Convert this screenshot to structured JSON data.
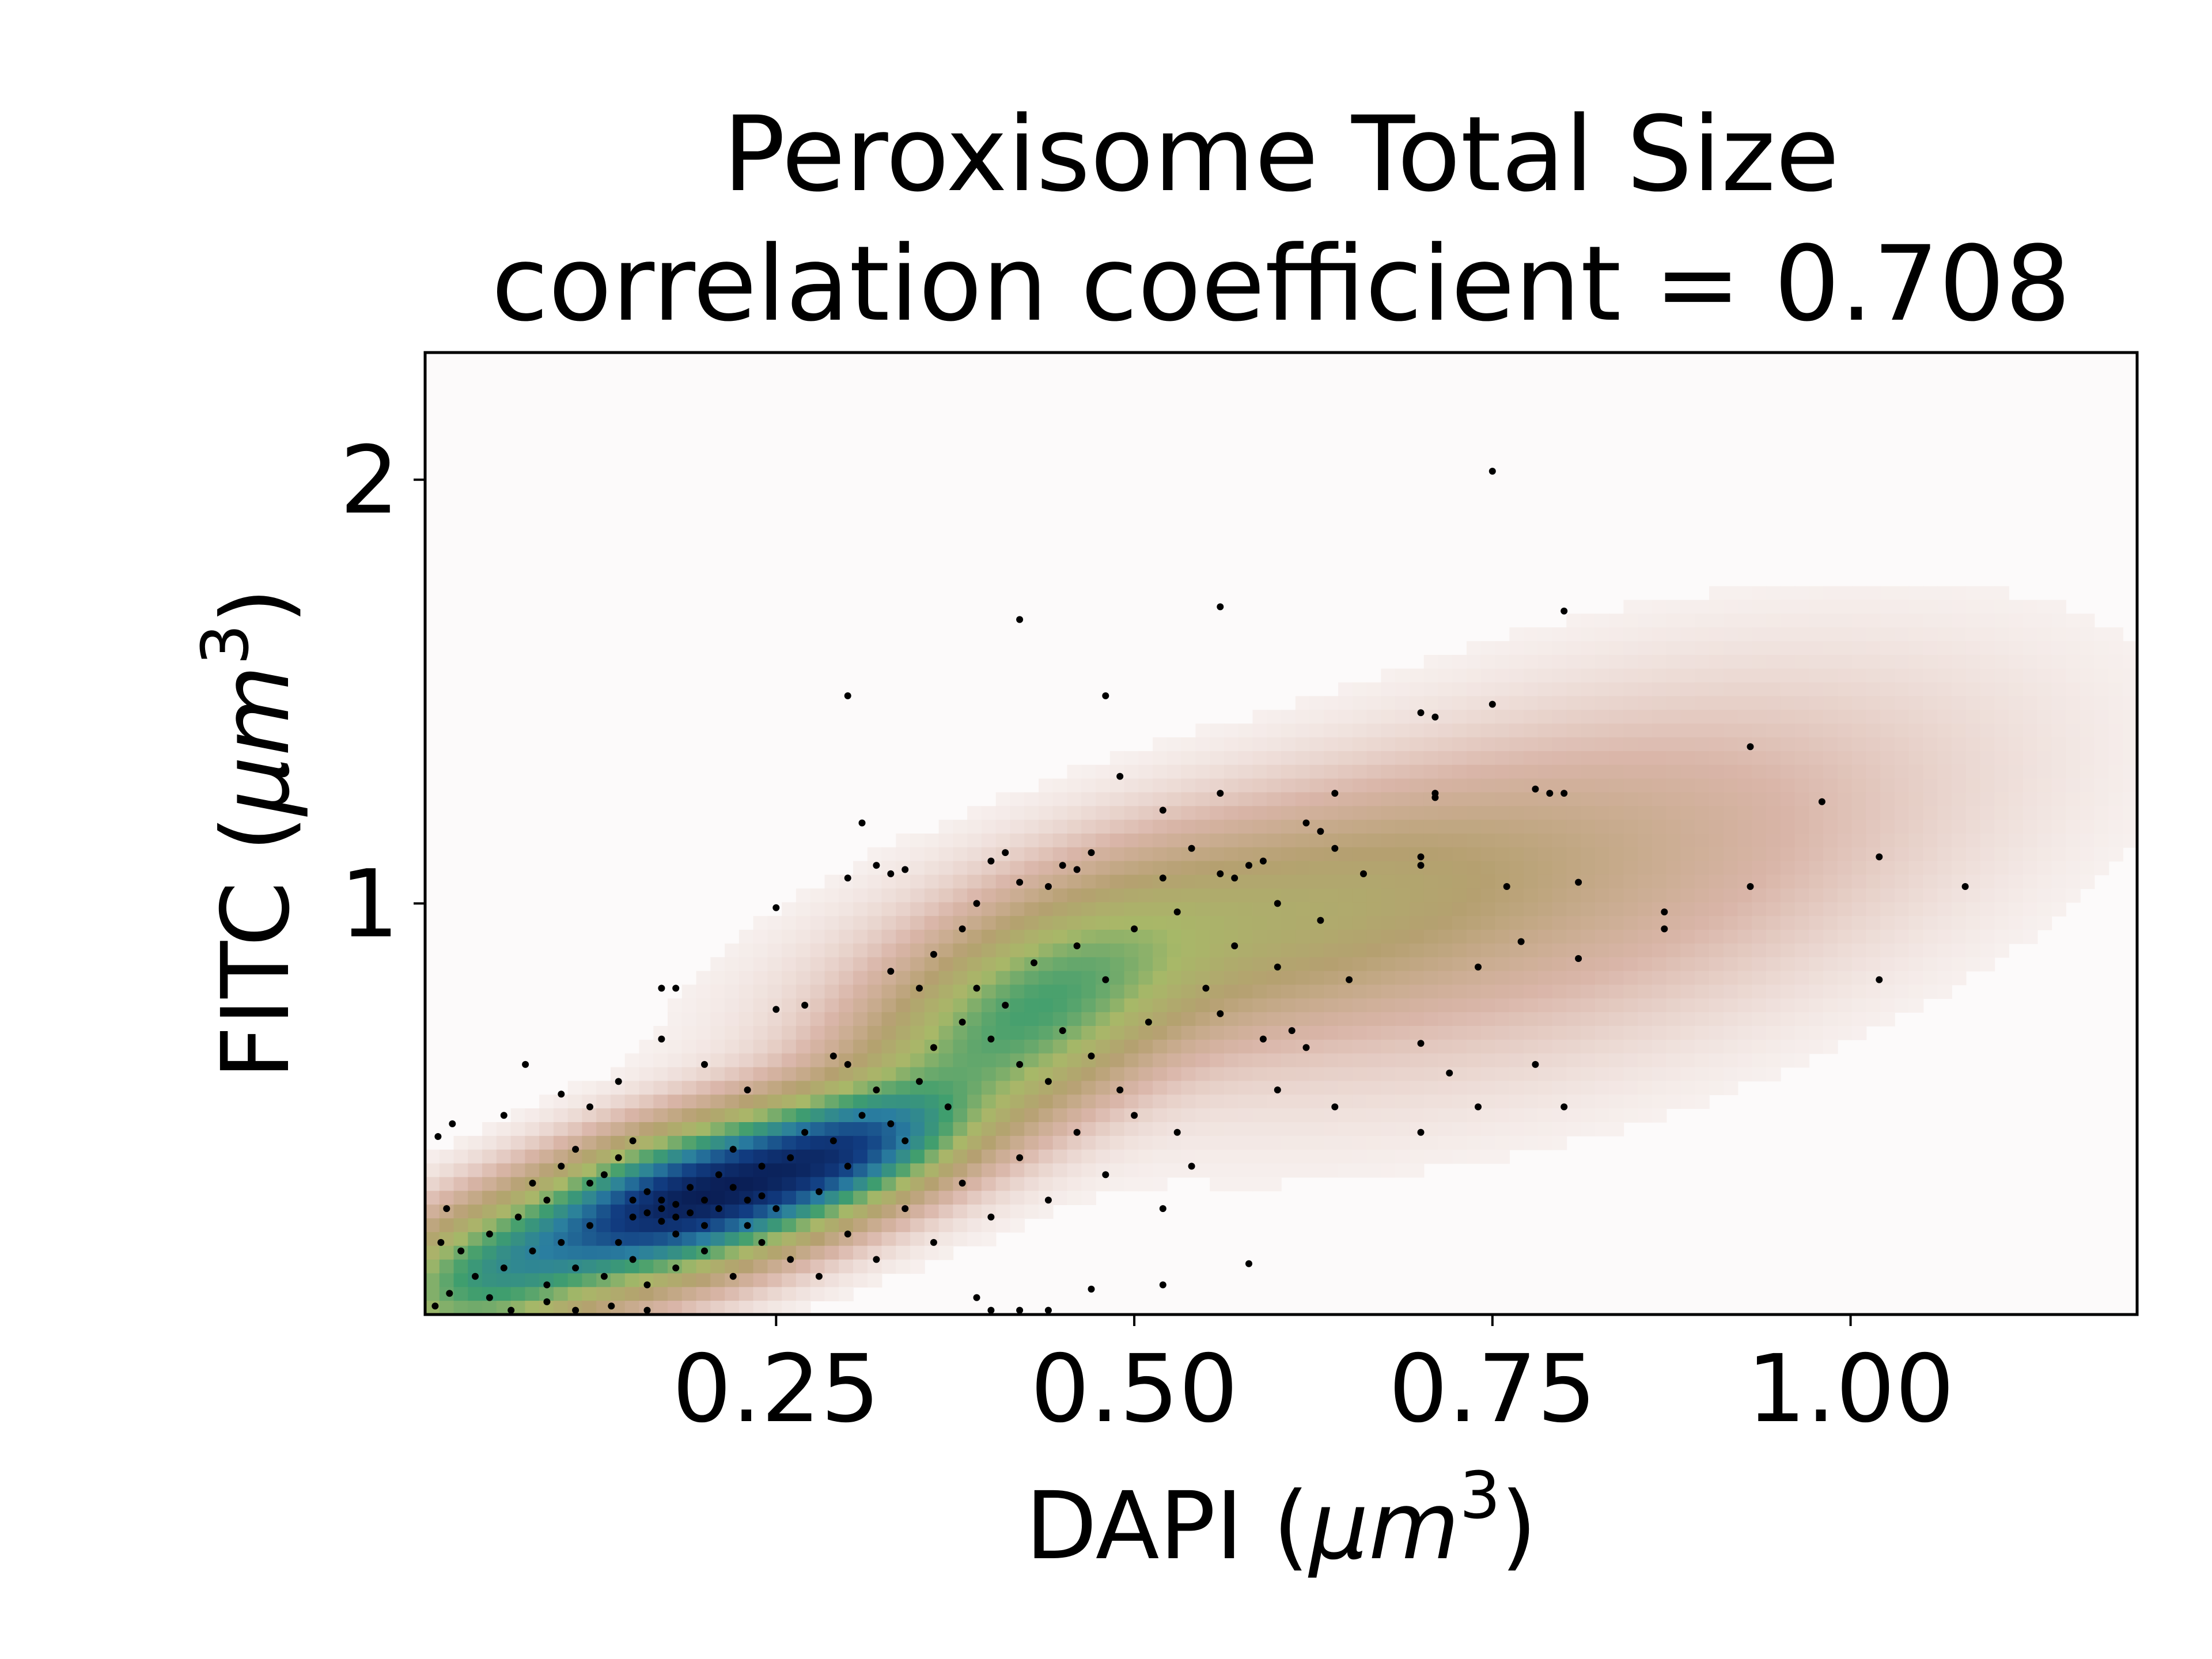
{
  "chart_data": {
    "type": "scatter",
    "title": "Peroxisome Total Size",
    "subtitle": "correlation coefficient = 0.708",
    "xlabel": {
      "prefix": "DAPI (",
      "var": "μm",
      "sup": "3",
      "suffix": ")"
    },
    "ylabel": {
      "prefix": "FITC (",
      "var": "μm",
      "sup": "3",
      "suffix": ")"
    },
    "xlim": [
      0.005,
      1.2
    ],
    "ylim": [
      0.03,
      2.3
    ],
    "xticks": [
      {
        "value": 0.25,
        "label": "0.25"
      },
      {
        "value": 0.5,
        "label": "0.50"
      },
      {
        "value": 0.75,
        "label": "0.75"
      },
      {
        "value": 1.0,
        "label": "1.00"
      }
    ],
    "yticks": [
      {
        "value": 1,
        "label": "1"
      },
      {
        "value": 2,
        "label": "2"
      }
    ],
    "grid": false,
    "legend": "none",
    "density_background": {
      "colormap": "gist_earth_r",
      "colors": [
        "#fcfafa",
        "#d9b5a8",
        "#b5a070",
        "#a8b868",
        "#3f9e6e",
        "#2a7ea0",
        "#123d82",
        "#0a1e55"
      ],
      "components": [
        {
          "x": 0.19,
          "y": 0.3,
          "sx": 0.07,
          "sy": 0.11,
          "rho": 0.55,
          "w": 1.0
        },
        {
          "x": 0.3,
          "y": 0.42,
          "sx": 0.05,
          "sy": 0.09,
          "rho": 0.5,
          "w": 0.55
        },
        {
          "x": 0.42,
          "y": 0.72,
          "sx": 0.07,
          "sy": 0.17,
          "rho": 0.6,
          "w": 0.32
        },
        {
          "x": 0.58,
          "y": 0.95,
          "sx": 0.13,
          "sy": 0.17,
          "rho": 0.55,
          "w": 0.14
        },
        {
          "x": 0.8,
          "y": 1.05,
          "sx": 0.15,
          "sy": 0.25,
          "rho": 0.5,
          "w": 0.05
        },
        {
          "x": 0.05,
          "y": 0.12,
          "sx": 0.05,
          "sy": 0.1,
          "rho": 0.4,
          "w": 0.35
        }
      ]
    },
    "points": [
      [
        0.014,
        0.45
      ],
      [
        0.024,
        0.48
      ],
      [
        0.02,
        0.28
      ],
      [
        0.016,
        0.2
      ],
      [
        0.03,
        0.18
      ],
      [
        0.04,
        0.12
      ],
      [
        0.022,
        0.08
      ],
      [
        0.012,
        0.05
      ],
      [
        0.05,
        0.07
      ],
      [
        0.065,
        0.04
      ],
      [
        0.09,
        0.06
      ],
      [
        0.11,
        0.04
      ],
      [
        0.135,
        0.05
      ],
      [
        0.16,
        0.04
      ],
      [
        0.06,
        0.5
      ],
      [
        0.075,
        0.62
      ],
      [
        0.1,
        0.55
      ],
      [
        0.12,
        0.52
      ],
      [
        0.14,
        0.58
      ],
      [
        0.15,
        0.44
      ],
      [
        0.17,
        0.8
      ],
      [
        0.18,
        0.8
      ],
      [
        0.17,
        0.68
      ],
      [
        0.2,
        0.62
      ],
      [
        0.23,
        0.56
      ],
      [
        0.25,
        0.75
      ],
      [
        0.27,
        0.76
      ],
      [
        0.25,
        0.99
      ],
      [
        0.29,
        0.64
      ],
      [
        0.3,
        0.62
      ],
      [
        0.3,
        1.06
      ],
      [
        0.31,
        1.19
      ],
      [
        0.32,
        1.09
      ],
      [
        0.33,
        1.07
      ],
      [
        0.34,
        1.08
      ],
      [
        0.3,
        1.49
      ],
      [
        0.33,
        0.84
      ],
      [
        0.35,
        0.8
      ],
      [
        0.36,
        0.88
      ],
      [
        0.38,
        0.94
      ],
      [
        0.39,
        1.0
      ],
      [
        0.4,
        1.1
      ],
      [
        0.41,
        1.12
      ],
      [
        0.42,
        1.05
      ],
      [
        0.44,
        1.04
      ],
      [
        0.45,
        1.09
      ],
      [
        0.46,
        1.08
      ],
      [
        0.47,
        1.12
      ],
      [
        0.42,
        1.67
      ],
      [
        0.48,
        1.49
      ],
      [
        0.49,
        1.3
      ],
      [
        0.52,
        1.22
      ],
      [
        0.52,
        1.06
      ],
      [
        0.54,
        1.13
      ],
      [
        0.56,
        1.26
      ],
      [
        0.56,
        1.07
      ],
      [
        0.57,
        1.06
      ],
      [
        0.58,
        1.09
      ],
      [
        0.59,
        1.1
      ],
      [
        0.6,
        1.0
      ],
      [
        0.56,
        1.7
      ],
      [
        0.62,
        1.19
      ],
      [
        0.63,
        1.17
      ],
      [
        0.64,
        1.26
      ],
      [
        0.64,
        1.13
      ],
      [
        0.66,
        1.07
      ],
      [
        0.7,
        1.45
      ],
      [
        0.71,
        1.44
      ],
      [
        0.71,
        1.25
      ],
      [
        0.71,
        1.26
      ],
      [
        0.7,
        1.09
      ],
      [
        0.7,
        1.11
      ],
      [
        0.75,
        2.02
      ],
      [
        0.75,
        1.47
      ],
      [
        0.76,
        1.04
      ],
      [
        0.78,
        1.27
      ],
      [
        0.79,
        1.26
      ],
      [
        0.8,
        1.26
      ],
      [
        0.8,
        1.69
      ],
      [
        0.81,
        1.05
      ],
      [
        0.87,
        0.98
      ],
      [
        0.87,
        0.94
      ],
      [
        0.81,
        0.87
      ],
      [
        0.93,
        1.37
      ],
      [
        0.98,
        1.24
      ],
      [
        1.02,
        1.11
      ],
      [
        0.93,
        1.04
      ],
      [
        1.08,
        1.04
      ],
      [
        1.02,
        0.82
      ],
      [
        0.7,
        0.67
      ],
      [
        0.72,
        0.6
      ],
      [
        0.74,
        0.85
      ],
      [
        0.77,
        0.91
      ],
      [
        0.78,
        0.62
      ],
      [
        0.8,
        0.52
      ],
      [
        0.7,
        0.46
      ],
      [
        0.74,
        0.52
      ],
      [
        0.64,
        0.52
      ],
      [
        0.62,
        0.66
      ],
      [
        0.61,
        0.7
      ],
      [
        0.6,
        0.56
      ],
      [
        0.59,
        0.68
      ],
      [
        0.63,
        0.96
      ],
      [
        0.65,
        0.82
      ],
      [
        0.6,
        0.85
      ],
      [
        0.58,
        0.15
      ],
      [
        0.52,
        0.1
      ],
      [
        0.52,
        0.28
      ],
      [
        0.53,
        0.46
      ],
      [
        0.54,
        0.38
      ],
      [
        0.47,
        0.09
      ],
      [
        0.44,
        0.04
      ],
      [
        0.42,
        0.04
      ],
      [
        0.4,
        0.04
      ],
      [
        0.39,
        0.07
      ],
      [
        0.08,
        0.34
      ],
      [
        0.09,
        0.3
      ],
      [
        0.1,
        0.38
      ],
      [
        0.11,
        0.42
      ],
      [
        0.12,
        0.34
      ],
      [
        0.13,
        0.36
      ],
      [
        0.14,
        0.4
      ],
      [
        0.15,
        0.3
      ],
      [
        0.16,
        0.32
      ],
      [
        0.17,
        0.28
      ],
      [
        0.18,
        0.26
      ],
      [
        0.19,
        0.33
      ],
      [
        0.2,
        0.24
      ],
      [
        0.21,
        0.36
      ],
      [
        0.22,
        0.42
      ],
      [
        0.23,
        0.3
      ],
      [
        0.24,
        0.38
      ],
      [
        0.25,
        0.28
      ],
      [
        0.26,
        0.4
      ],
      [
        0.27,
        0.46
      ],
      [
        0.28,
        0.32
      ],
      [
        0.29,
        0.44
      ],
      [
        0.3,
        0.38
      ],
      [
        0.31,
        0.5
      ],
      [
        0.32,
        0.56
      ],
      [
        0.33,
        0.48
      ],
      [
        0.34,
        0.44
      ],
      [
        0.35,
        0.58
      ],
      [
        0.36,
        0.66
      ],
      [
        0.37,
        0.52
      ],
      [
        0.38,
        0.72
      ],
      [
        0.39,
        0.8
      ],
      [
        0.4,
        0.68
      ],
      [
        0.41,
        0.76
      ],
      [
        0.42,
        0.62
      ],
      [
        0.43,
        0.86
      ],
      [
        0.44,
        0.58
      ],
      [
        0.45,
        0.7
      ],
      [
        0.46,
        0.9
      ],
      [
        0.47,
        0.64
      ],
      [
        0.48,
        0.82
      ],
      [
        0.49,
        0.56
      ],
      [
        0.5,
        0.94
      ],
      [
        0.51,
        0.72
      ],
      [
        0.53,
        0.98
      ],
      [
        0.55,
        0.8
      ],
      [
        0.57,
        0.9
      ],
      [
        0.56,
        0.74
      ],
      [
        0.05,
        0.22
      ],
      [
        0.06,
        0.14
      ],
      [
        0.07,
        0.26
      ],
      [
        0.08,
        0.18
      ],
      [
        0.09,
        0.1
      ],
      [
        0.1,
        0.2
      ],
      [
        0.11,
        0.14
      ],
      [
        0.12,
        0.24
      ],
      [
        0.13,
        0.12
      ],
      [
        0.14,
        0.2
      ],
      [
        0.15,
        0.16
      ],
      [
        0.16,
        0.1
      ],
      [
        0.18,
        0.14
      ],
      [
        0.2,
        0.18
      ],
      [
        0.22,
        0.12
      ],
      [
        0.24,
        0.2
      ],
      [
        0.26,
        0.16
      ],
      [
        0.28,
        0.12
      ],
      [
        0.3,
        0.22
      ],
      [
        0.32,
        0.16
      ],
      [
        0.34,
        0.28
      ],
      [
        0.36,
        0.2
      ],
      [
        0.38,
        0.34
      ],
      [
        0.4,
        0.26
      ],
      [
        0.42,
        0.4
      ],
      [
        0.44,
        0.3
      ],
      [
        0.46,
        0.46
      ],
      [
        0.48,
        0.36
      ],
      [
        0.5,
        0.5
      ],
      [
        0.15,
        0.26
      ],
      [
        0.16,
        0.27
      ],
      [
        0.17,
        0.25
      ],
      [
        0.18,
        0.29
      ],
      [
        0.19,
        0.27
      ],
      [
        0.2,
        0.3
      ],
      [
        0.17,
        0.3
      ],
      [
        0.18,
        0.22
      ],
      [
        0.21,
        0.28
      ],
      [
        0.22,
        0.33
      ],
      [
        0.23,
        0.24
      ],
      [
        0.24,
        0.31
      ]
    ]
  }
}
